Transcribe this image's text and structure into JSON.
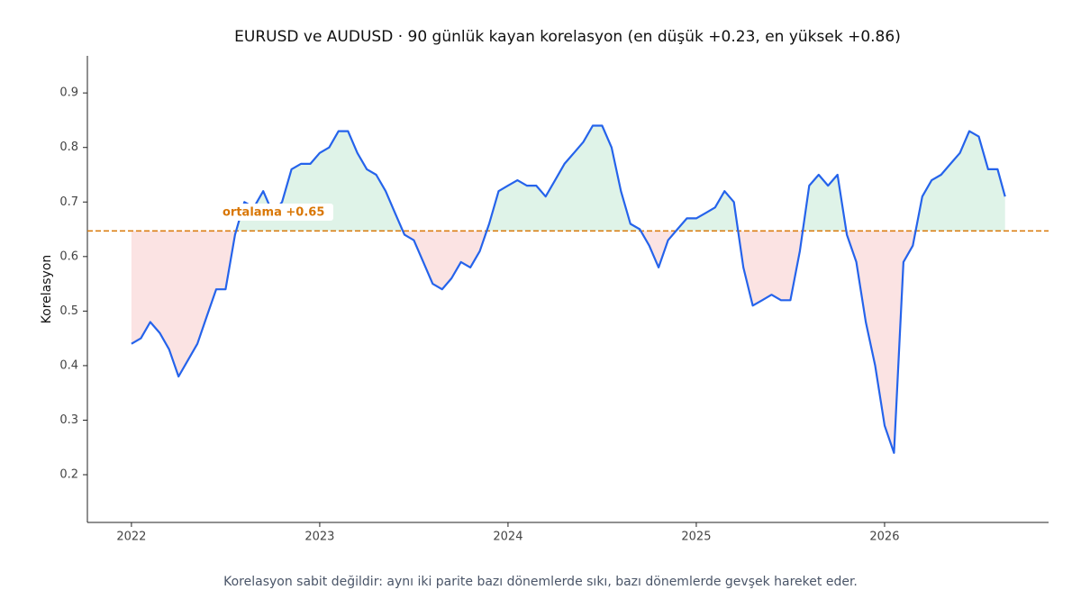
{
  "chart_data": {
    "type": "line",
    "title": "EURUSD ve AUDUSD · 90 günlük kayan korelasyon (en düşük +0.23, en yüksek +0.86)",
    "y_label": "Korelasyon",
    "footnote": "Korelasyon sabit değildir: aynı iki parite bazı dönemlerde sıkı, bazı dönemlerde gevşek hareket eder.",
    "x": [
      2022.0,
      2022.05,
      2022.1,
      2022.15,
      2022.2,
      2022.25,
      2022.3,
      2022.35,
      2022.4,
      2022.45,
      2022.5,
      2022.55,
      2022.6,
      2022.65,
      2022.7,
      2022.75,
      2022.8,
      2022.85,
      2022.9,
      2022.95,
      2023.0,
      2023.05,
      2023.1,
      2023.15,
      2023.2,
      2023.25,
      2023.3,
      2023.35,
      2023.4,
      2023.45,
      2023.5,
      2023.55,
      2023.6,
      2023.65,
      2023.7,
      2023.75,
      2023.8,
      2023.85,
      2023.9,
      2023.95,
      2024.0,
      2024.05,
      2024.1,
      2024.15,
      2024.2,
      2024.25,
      2024.3,
      2024.35,
      2024.4,
      2024.45,
      2024.5,
      2024.55,
      2024.6,
      2024.65,
      2024.7,
      2024.75,
      2024.8,
      2024.85,
      2024.9,
      2024.95,
      2025.0,
      2025.05,
      2025.1,
      2025.15,
      2025.2,
      2025.25,
      2025.3,
      2025.35,
      2025.4,
      2025.45,
      2025.5,
      2025.55,
      2025.6,
      2025.65,
      2025.7,
      2025.75,
      2025.8,
      2025.85,
      2025.9,
      2025.95,
      2026.0,
      2026.05,
      2026.1,
      2026.15,
      2026.2,
      2026.25,
      2026.3,
      2026.35,
      2026.4,
      2026.45,
      2026.5,
      2026.55,
      2026.6,
      2026.64
    ],
    "series": [
      {
        "name": "Korelasyon",
        "color": "#2563eb",
        "values": [
          0.44,
          0.45,
          0.48,
          0.46,
          0.43,
          0.38,
          0.41,
          0.44,
          0.49,
          0.54,
          0.54,
          0.64,
          0.7,
          0.69,
          0.72,
          0.68,
          0.7,
          0.76,
          0.77,
          0.77,
          0.79,
          0.8,
          0.83,
          0.83,
          0.79,
          0.76,
          0.75,
          0.72,
          0.68,
          0.64,
          0.63,
          0.59,
          0.55,
          0.54,
          0.56,
          0.59,
          0.58,
          0.61,
          0.66,
          0.72,
          0.73,
          0.74,
          0.73,
          0.73,
          0.71,
          0.74,
          0.77,
          0.79,
          0.81,
          0.84,
          0.84,
          0.8,
          0.72,
          0.66,
          0.65,
          0.62,
          0.58,
          0.63,
          0.65,
          0.67,
          0.67,
          0.68,
          0.69,
          0.72,
          0.7,
          0.58,
          0.51,
          0.52,
          0.53,
          0.52,
          0.52,
          0.61,
          0.73,
          0.75,
          0.73,
          0.75,
          0.64,
          0.59,
          0.48,
          0.4,
          0.29,
          0.24,
          0.59,
          0.62,
          0.71,
          0.74,
          0.75,
          0.77,
          0.79,
          0.83,
          0.82,
          0.76,
          0.76,
          0.71
        ]
      }
    ],
    "mean": 0.647,
    "mean_color": "#d97706",
    "mean_label": "ortalama +0.65",
    "above_color": "#dff3e8",
    "below_color": "#fbe3e3",
    "xlim": [
      2021.766,
      2026.871
    ],
    "xticks": [
      2022,
      2023,
      2024,
      2025,
      2026
    ],
    "ylim": [
      0.1125,
      0.968
    ],
    "yticks": [
      0.2,
      0.3,
      0.4,
      0.5,
      0.6,
      0.7,
      0.8,
      0.9
    ]
  }
}
